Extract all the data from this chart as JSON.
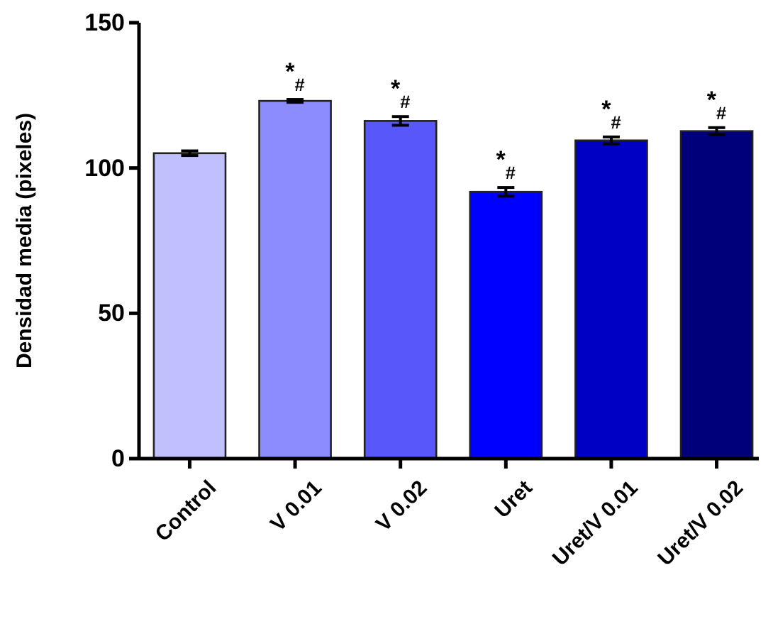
{
  "chart_data": {
    "type": "bar",
    "ylabel": "Densidad media (pixeles)",
    "categories": [
      "Control",
      "V 0.01",
      "V 0.02",
      "Uret",
      "Uret/V 0.01",
      "Uret/V 0.02"
    ],
    "values": [
      105.1,
      123.1,
      116.2,
      91.8,
      109.5,
      112.7
    ],
    "errors": [
      0.8,
      0.5,
      1.5,
      1.5,
      1.2,
      1.2
    ],
    "colors": [
      "#c0c0ff",
      "#8c8cff",
      "#5757fa",
      "#0000ff",
      "#0000c4",
      "#00007a"
    ],
    "ylim": [
      0,
      150
    ],
    "yticks": [
      0,
      50,
      100,
      150
    ],
    "grid": false,
    "annotations": [
      {
        "text": "*$_{#}$",
        "x": "V 0.01",
        "y": 123.6
      },
      {
        "text": "*$_{#}$",
        "x": "V 0.02",
        "y": 117.7
      },
      {
        "text": "*$_{#}$",
        "x": "Uret",
        "y": 93.3
      },
      {
        "text": "*$_{#}$",
        "x": "Uret/V 0.01",
        "y": 110.7
      },
      {
        "text": "*$_{#}$",
        "x": "Uret/V 0.02",
        "y": 113.9
      }
    ]
  }
}
